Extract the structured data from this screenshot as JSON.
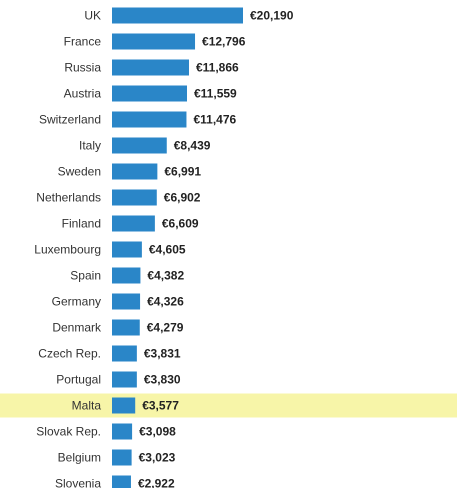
{
  "chart_data": {
    "type": "bar",
    "orientation": "horizontal",
    "title": "",
    "xlabel": "",
    "ylabel": "",
    "categories": [
      "UK",
      "France",
      "Russia",
      "Austria",
      "Switzerland",
      "Italy",
      "Sweden",
      "Netherlands",
      "Finland",
      "Luxembourg",
      "Spain",
      "Germany",
      "Denmark",
      "Czech Rep.",
      "Portugal",
      "Malta",
      "Slovak Rep.",
      "Belgium",
      "Slovenia"
    ],
    "values": [
      20190,
      12796,
      11866,
      11559,
      11476,
      8439,
      6991,
      6902,
      6609,
      4605,
      4382,
      4326,
      4279,
      3831,
      3830,
      3577,
      3098,
      3023,
      2922
    ],
    "value_labels": [
      "€20,190",
      "€12,796",
      "€11,866",
      "€11,559",
      "€11,476",
      "€8,439",
      "€6,991",
      "€6,902",
      "€6,609",
      "€4,605",
      "€4,382",
      "€4,326",
      "€4,279",
      "€3,831",
      "€3,830",
      "€3,577",
      "€3,098",
      "€3,023",
      "€2,922"
    ],
    "highlight_category": "Malta",
    "xlim": [
      0,
      20190
    ],
    "grid": false,
    "legend": "none",
    "colors": {
      "bar": "#2a86c8",
      "highlight_band": "#f7f5a8"
    }
  }
}
